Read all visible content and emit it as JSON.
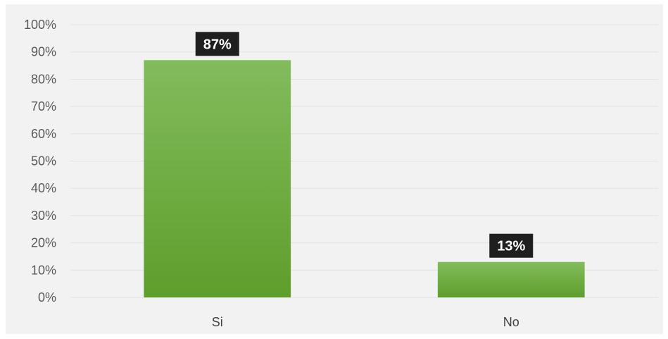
{
  "chart_data": {
    "type": "bar",
    "categories": [
      "Si",
      "No"
    ],
    "values": [
      87,
      13
    ],
    "data_labels": [
      "87%",
      "13%"
    ],
    "ylim": [
      0,
      100
    ],
    "y_ticks": [
      "0%",
      "10%",
      "20%",
      "30%",
      "40%",
      "50%",
      "60%",
      "70%",
      "80%",
      "90%",
      "100%"
    ],
    "grid": true,
    "legend": "none",
    "colors": {
      "bar_top": "#82bc5c",
      "bar_bottom": "#5e9e2c",
      "data_label_bg": "#1f1f1f",
      "background": "#f2f2f2",
      "grid": "#e2e2e2"
    }
  }
}
